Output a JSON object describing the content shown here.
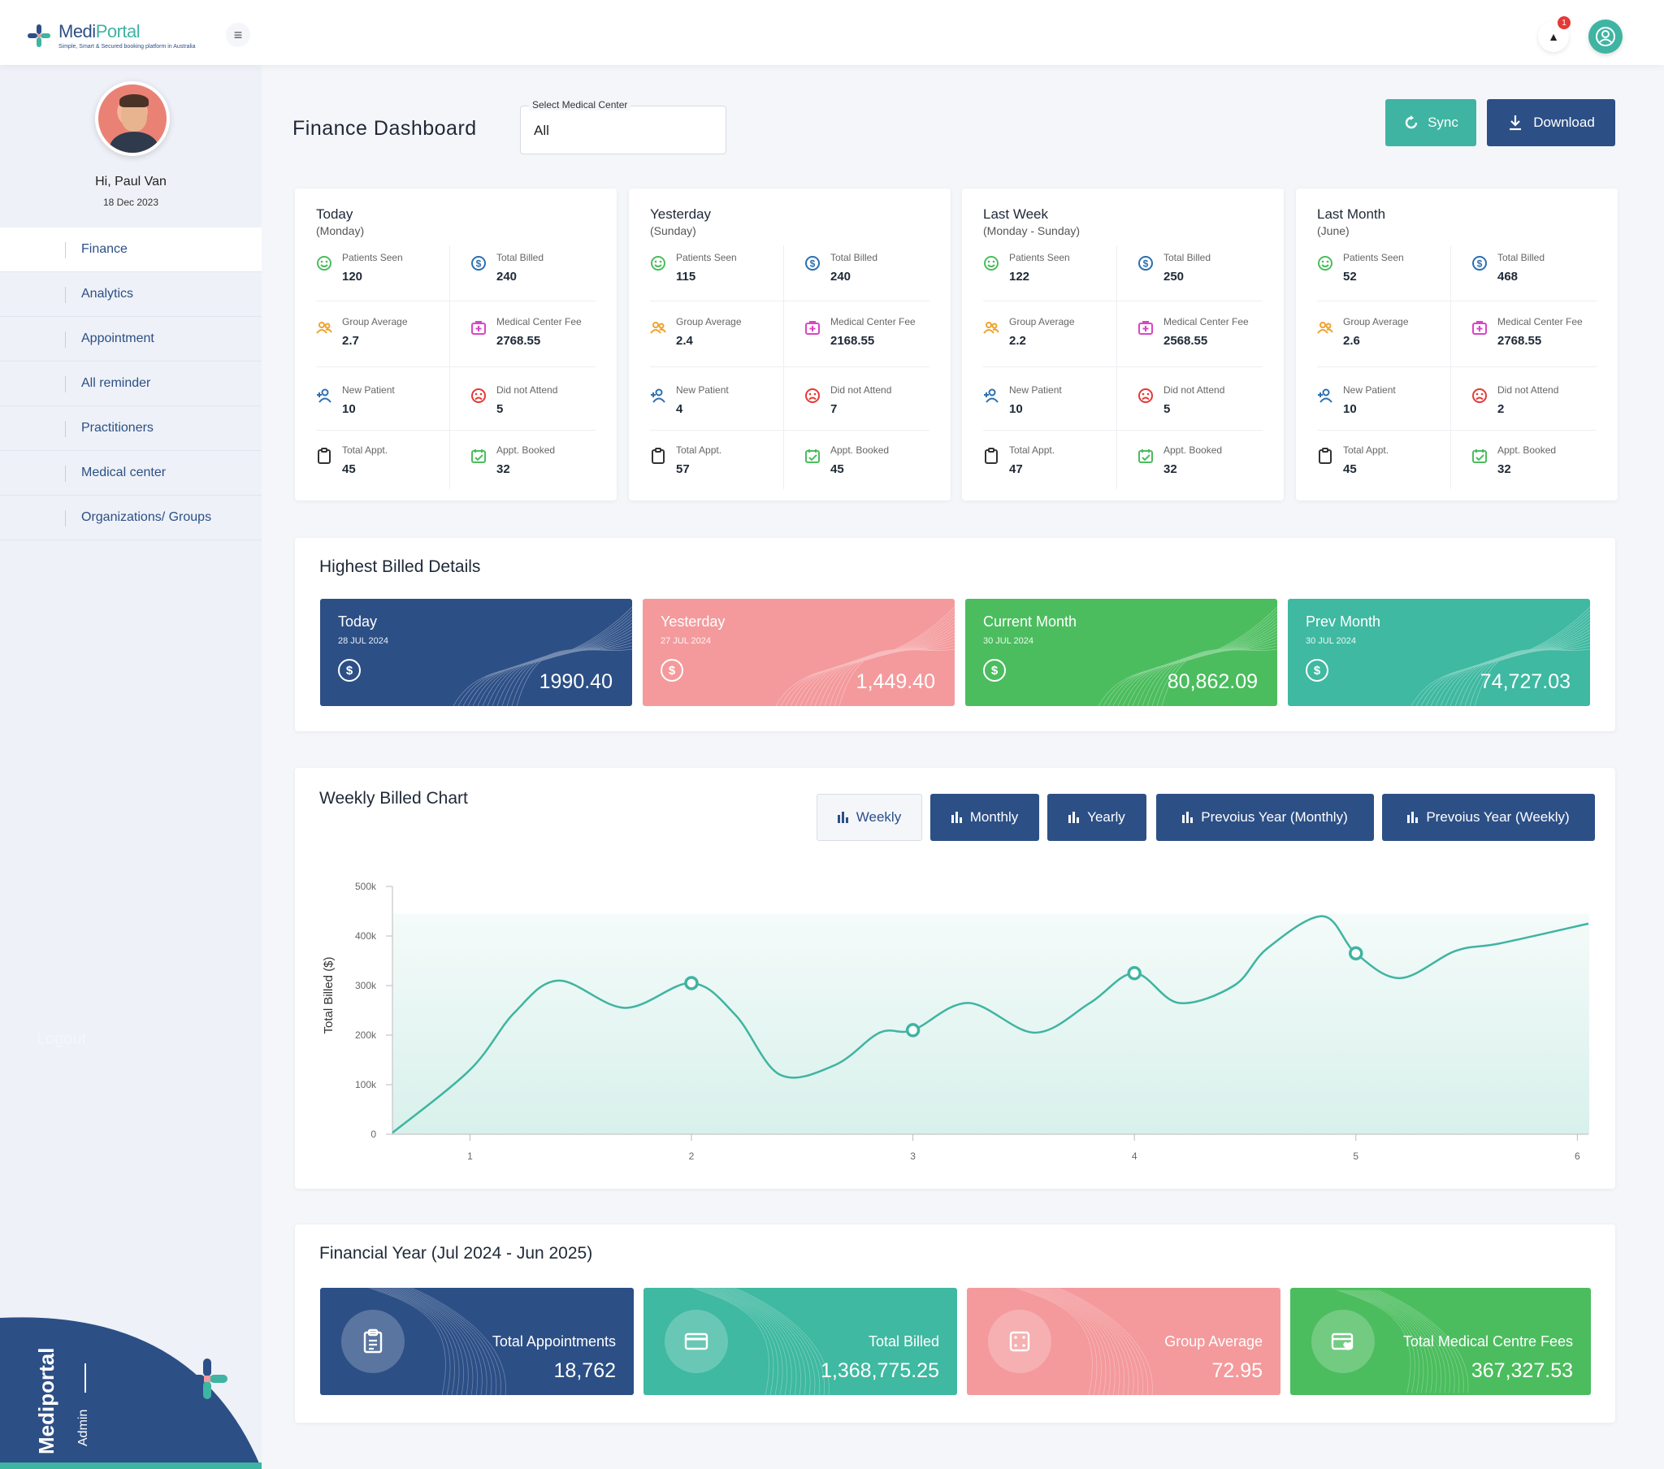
{
  "app": {
    "name_main": "Medi",
    "name_accent": "Portal",
    "tagline": "Simple, Smart & Secured booking platform in Australia"
  },
  "topbar": {
    "notification_count": "1"
  },
  "user": {
    "greeting": "Hi, Paul Van",
    "date": "18 Dec 2023"
  },
  "sidebar": {
    "items": [
      {
        "label": "Finance"
      },
      {
        "label": "Analytics"
      },
      {
        "label": "Appointment"
      },
      {
        "label": "All reminder"
      },
      {
        "label": "Practitioners"
      },
      {
        "label": "Medical center"
      },
      {
        "label": "Organizations/ Groups"
      }
    ],
    "logout": "Logout",
    "brand": "Mediportal",
    "role": "Admin"
  },
  "header": {
    "title": "Finance  Dashboard",
    "select_label": "Select Medical Center",
    "select_value": "All",
    "sync_label": "Sync",
    "download_label": "Download"
  },
  "periods": [
    {
      "title": "Today",
      "subtitle": "(Monday)",
      "patients_seen": "120",
      "total_billed": "240",
      "group_average": "2.7",
      "medical_center_fee": "2768.55",
      "new_patient": "10",
      "did_not_attend": "5",
      "total_appt": "45",
      "appt_booked": "32"
    },
    {
      "title": "Yesterday",
      "subtitle": "(Sunday)",
      "patients_seen": "115",
      "total_billed": "240",
      "group_average": "2.4",
      "medical_center_fee": "2168.55",
      "new_patient": "4",
      "did_not_attend": "7",
      "total_appt": "57",
      "appt_booked": "45"
    },
    {
      "title": "Last Week",
      "subtitle": "(Monday - Sunday)",
      "patients_seen": "122",
      "total_billed": "250",
      "group_average": "2.2",
      "medical_center_fee": "2568.55",
      "new_patient": "10",
      "did_not_attend": "5",
      "total_appt": "47",
      "appt_booked": "32"
    },
    {
      "title": "Last Month",
      "subtitle": "(June)",
      "patients_seen": "52",
      "total_billed": "468",
      "group_average": "2.6",
      "medical_center_fee": "2768.55",
      "new_patient": "10",
      "did_not_attend": "2",
      "total_appt": "45",
      "appt_booked": "32"
    }
  ],
  "stat_labels": {
    "patients_seen": "Patients Seen",
    "total_billed": "Total Billed",
    "group_average": "Group Average",
    "medical_center_fee": "Medical Center Fee",
    "new_patient": "New Patient",
    "did_not_attend": "Did not Attend",
    "total_appt": "Total Appt.",
    "appt_booked": "Appt. Booked"
  },
  "highest_billed": {
    "title": "Highest Billed Details",
    "cards": [
      {
        "title": "Today",
        "date": "28 JUL 2024",
        "value": "1990.40",
        "color": "#2c4f86"
      },
      {
        "title": "Yesterday",
        "date": "27 JUL 2024",
        "value": "1,449.40",
        "color": "#f49a9c"
      },
      {
        "title": "Current  Month",
        "date": "30 JUL 2024",
        "value": "80,862.09",
        "color": "#4bbd5e"
      },
      {
        "title": "Prev Month",
        "date": "30 JUL 2024",
        "value": "74,727.03",
        "color": "#3fb9a1"
      }
    ]
  },
  "weekly_chart": {
    "title": "Weekly Billed Chart",
    "tabs": [
      {
        "label": "Weekly"
      },
      {
        "label": "Monthly"
      },
      {
        "label": "Yearly"
      },
      {
        "label": "Prevoius Year (Monthly)"
      },
      {
        "label": "Prevoius Year (Weekly)"
      }
    ]
  },
  "chart_data": {
    "type": "area",
    "title": "",
    "xlabel": "",
    "ylabel": "Total Billed ($)",
    "x_ticks": [
      "1",
      "2",
      "3",
      "4",
      "5",
      "6"
    ],
    "y_ticks": [
      "0",
      "100k",
      "200k",
      "300k",
      "400k",
      "500k"
    ],
    "ylim": [
      0,
      500000
    ],
    "xlim": [
      0.65,
      6.05
    ],
    "series": [
      {
        "line_color": "#3fb4a2",
        "fill_color": "#d4efe9",
        "x": [
          0.65,
          1.0,
          1.2,
          1.4,
          1.7,
          2.0,
          2.2,
          2.4,
          2.65,
          2.85,
          3.0,
          3.25,
          3.55,
          3.8,
          4.0,
          4.2,
          4.45,
          4.6,
          4.85,
          5.0,
          5.2,
          5.45,
          5.65,
          6.05
        ],
        "y": [
          3000,
          130000,
          245000,
          310000,
          255000,
          305000,
          240000,
          120000,
          140000,
          205000,
          210000,
          265000,
          205000,
          265000,
          325000,
          265000,
          300000,
          375000,
          440000,
          365000,
          315000,
          370000,
          385000,
          425000
        ]
      }
    ],
    "markers_x": [
      2,
      3,
      4,
      5
    ]
  },
  "financial_year": {
    "title": "Financial Year (Jul 2024 - Jun 2025)",
    "cards": [
      {
        "label": "Total Appointments",
        "value": "18,762",
        "color": "#2c4f86",
        "icon": "clipboard-icon"
      },
      {
        "label": "Total Billed",
        "value": "1,368,775.25",
        "color": "#3fb9a1",
        "icon": "credit-card-icon"
      },
      {
        "label": "Group Average",
        "value": "72.95",
        "color": "#f49a9c",
        "icon": "dice-icon"
      },
      {
        "label": "Total Medical Centre Fees",
        "value": "367,327.53",
        "color": "#4bbd5e",
        "icon": "card-heart-icon"
      }
    ]
  }
}
